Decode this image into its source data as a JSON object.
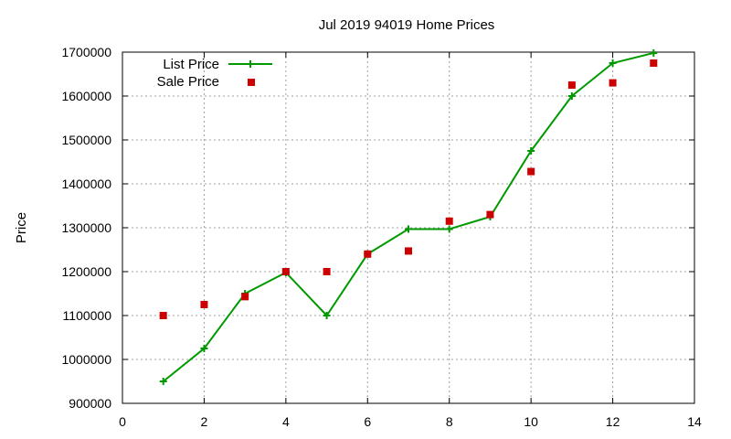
{
  "chart_data": {
    "type": "line",
    "title": "Jul 2019 94019 Home Prices",
    "xlabel": "",
    "ylabel": "Price",
    "xlim": [
      0,
      14
    ],
    "ylim": [
      900000,
      1700000
    ],
    "x_ticks": [
      0,
      2,
      4,
      6,
      8,
      10,
      12,
      14
    ],
    "y_ticks": [
      900000,
      1000000,
      1100000,
      1200000,
      1300000,
      1400000,
      1500000,
      1600000,
      1700000
    ],
    "grid": true,
    "legend_position": "top-left",
    "series": [
      {
        "name": "List Price",
        "style": "line-with-plus-markers",
        "color": "#009900",
        "x": [
          1,
          2,
          3,
          4,
          5,
          6,
          7,
          8,
          9,
          10,
          11,
          12,
          13
        ],
        "y": [
          950000,
          1025000,
          1150000,
          1198000,
          1100000,
          1240000,
          1297000,
          1297000,
          1325000,
          1475000,
          1600000,
          1675000,
          1698000
        ]
      },
      {
        "name": "Sale Price",
        "style": "square-markers",
        "color": "#cc0000",
        "x": [
          1,
          2,
          3,
          4,
          5,
          6,
          7,
          8,
          9,
          10,
          11,
          12,
          13
        ],
        "y": [
          1100000,
          1125000,
          1143000,
          1200000,
          1200000,
          1240000,
          1247000,
          1315000,
          1330000,
          1428000,
          1625000,
          1630000,
          1675000
        ]
      }
    ]
  }
}
